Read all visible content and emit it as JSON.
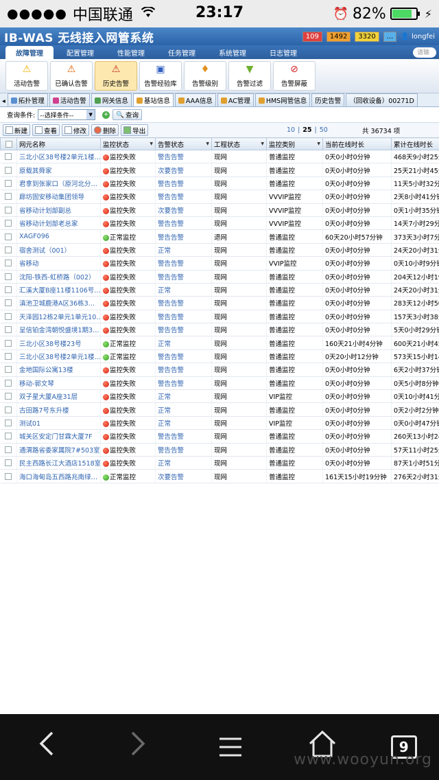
{
  "status_bar": {
    "signal": "●●●●●",
    "carrier": "中国联通",
    "wifi": "WiFi",
    "time": "23:17",
    "alarm_icon": "⏰",
    "battery": "82%",
    "charging": "⚡"
  },
  "app": {
    "title": "IB-WAS 无线接入网管系统",
    "badges": [
      "109",
      "1492",
      "3320",
      "..."
    ],
    "user": "longfei",
    "search_placeholder": "请输"
  },
  "menu": [
    "故障管理",
    "配置管理",
    "性能管理",
    "任务管理",
    "系统管理",
    "日志管理"
  ],
  "toolbar": [
    {
      "label": "活动告警",
      "icon": "⚠",
      "color": "#f0b000"
    },
    {
      "label": "已确认告警",
      "icon": "⚠",
      "color": "#e06000"
    },
    {
      "label": "历史告警",
      "icon": "⚠",
      "color": "#c03020"
    },
    {
      "label": "告警经验库",
      "icon": "▣",
      "color": "#3060c0"
    },
    {
      "label": "告警级别",
      "icon": "♦",
      "color": "#e09020"
    },
    {
      "label": "告警过滤",
      "icon": "▼",
      "color": "#70b030"
    },
    {
      "label": "告警屏蔽",
      "icon": "⊘",
      "color": "#d02020"
    }
  ],
  "tabs": [
    "拓扑管理",
    "活动告警",
    "网关信息",
    "基站信息",
    "AAA信息",
    "AC管理",
    "HMS网管信息",
    "历史告警",
    "（回收设备）00271D"
  ],
  "query": {
    "label": "查询条件:",
    "select": "--选择条件--",
    "button": "查询"
  },
  "actions": [
    "新建",
    "查看",
    "修改",
    "删除",
    "导出"
  ],
  "pager": {
    "p1": "10",
    "p2": "25",
    "p3": "50",
    "total": "共 36734 项"
  },
  "columns": [
    "网元名称",
    "监控状态",
    "告警状态",
    "工程状态",
    "监控类别",
    "当前在线时长",
    "累计在线时长"
  ],
  "rows": [
    {
      "name": "三北小区38号楼2单元1楼…",
      "mon": "监控失败",
      "ok": false,
      "alarm": "警告告警",
      "proj": "现网",
      "cat": "普通监控",
      "cur": "0天0小时0分钟",
      "tot": "468天9小时25分"
    },
    {
      "name": "原载其舜家",
      "mon": "监控失败",
      "ok": false,
      "alarm": "次要告警",
      "proj": "现网",
      "cat": "普通监控",
      "cur": "0天0小时0分钟",
      "tot": "25天21小时45分"
    },
    {
      "name": "君拿到张家口（原河北分…",
      "mon": "监控失败",
      "ok": false,
      "alarm": "警告告警",
      "proj": "现网",
      "cat": "普通监控",
      "cur": "0天0小时0分钟",
      "tot": "11天5小时32分"
    },
    {
      "name": "廊坊固安移动集团领导",
      "mon": "监控失败",
      "ok": false,
      "alarm": "警告告警",
      "proj": "现网",
      "cat": "VVVIP监控",
      "cur": "0天0小时0分钟",
      "tot": "2天8小时41分钟"
    },
    {
      "name": "省移动计划部副总",
      "mon": "监控失败",
      "ok": false,
      "alarm": "次要告警",
      "proj": "现网",
      "cat": "VVVIP监控",
      "cur": "0天0小时0分钟",
      "tot": "0天1小时35分钟"
    },
    {
      "name": "省移动计划部老总家",
      "mon": "监控失败",
      "ok": false,
      "alarm": "警告告警",
      "proj": "现网",
      "cat": "VVVIP监控",
      "cur": "0天0小时0分钟",
      "tot": "14天7小时29分"
    },
    {
      "name": "XAGF096",
      "mon": "正常监控",
      "ok": true,
      "alarm": "警告告警",
      "proj": "退网",
      "cat": "普通监控",
      "cur": "60天20小时57分钟",
      "tot": "373天3小时7分"
    },
    {
      "name": "宿舍测试（001）",
      "mon": "监控失败",
      "ok": false,
      "alarm": "正常",
      "proj": "现网",
      "cat": "普通监控",
      "cur": "0天0小时0分钟",
      "tot": "24天20小时31分"
    },
    {
      "name": "省移动",
      "mon": "监控失败",
      "ok": false,
      "alarm": "警告告警",
      "proj": "现网",
      "cat": "VVIP监控",
      "cur": "0天0小时0分钟",
      "tot": "0天10小时9分钟"
    },
    {
      "name": "沈阳-铁西-虹桥路（002）",
      "mon": "监控失败",
      "ok": false,
      "alarm": "警告告警",
      "proj": "现网",
      "cat": "普通监控",
      "cur": "0天0小时0分钟",
      "tot": "204天12小时19分"
    },
    {
      "name": "汇溪大厦B座11楼1106号…",
      "mon": "监控失败",
      "ok": false,
      "alarm": "正常",
      "proj": "现网",
      "cat": "普通监控",
      "cur": "0天0小时0分钟",
      "tot": "24天20小时31分"
    },
    {
      "name": "滇池卫城鹿港A区36栋3…",
      "mon": "监控失败",
      "ok": false,
      "alarm": "警告告警",
      "proj": "现网",
      "cat": "普通监控",
      "cur": "0天0小时0分钟",
      "tot": "283天12小时50分"
    },
    {
      "name": "天泽园12栋2单元1单元10…",
      "mon": "监控失败",
      "ok": false,
      "alarm": "警告告警",
      "proj": "现网",
      "cat": "普通监控",
      "cur": "0天0小时0分钟",
      "tot": "157天3小时38分"
    },
    {
      "name": "呈信铂金湾朝悦盛境1期3…",
      "mon": "监控失败",
      "ok": false,
      "alarm": "警告告警",
      "proj": "现网",
      "cat": "普通监控",
      "cur": "0天0小时0分钟",
      "tot": "5天0小时29分钟"
    },
    {
      "name": "三北小区38号楼23号",
      "mon": "正常监控",
      "ok": true,
      "alarm": "正常",
      "proj": "现网",
      "cat": "普通监控",
      "cur": "160天21小时4分钟",
      "tot": "600天21小时45分"
    },
    {
      "name": "三北小区38号楼2单元1楼…",
      "mon": "正常监控",
      "ok": true,
      "alarm": "警告告警",
      "proj": "现网",
      "cat": "普通监控",
      "cur": "0天20小时12分钟",
      "tot": "573天15小时14分"
    },
    {
      "name": "金地国际公寓13楼",
      "mon": "监控失败",
      "ok": false,
      "alarm": "警告告警",
      "proj": "现网",
      "cat": "普通监控",
      "cur": "0天0小时0分钟",
      "tot": "6天2小时37分钟"
    },
    {
      "name": "移动-郭文琴",
      "mon": "监控失败",
      "ok": false,
      "alarm": "警告告警",
      "proj": "现网",
      "cat": "普通监控",
      "cur": "0天0小时0分钟",
      "tot": "0天5小时8分钟"
    },
    {
      "name": "双子星大厦A座31层",
      "mon": "监控失败",
      "ok": false,
      "alarm": "正常",
      "proj": "现网",
      "cat": "VIP监控",
      "cur": "0天0小时0分钟",
      "tot": "0天10小时41分"
    },
    {
      "name": "古田路7号东升楼",
      "mon": "监控失败",
      "ok": false,
      "alarm": "正常",
      "proj": "现网",
      "cat": "普通监控",
      "cur": "0天0小时0分钟",
      "tot": "0天2小时2分钟"
    },
    {
      "name": "测试01",
      "mon": "监控失败",
      "ok": false,
      "alarm": "正常",
      "proj": "现网",
      "cat": "VIP监控",
      "cur": "0天0小时0分钟",
      "tot": "0天0小时47分钟"
    },
    {
      "name": "城关区安定门甘霖大厦7F",
      "mon": "监控失败",
      "ok": false,
      "alarm": "警告告警",
      "proj": "现网",
      "cat": "普通监控",
      "cur": "0天0小时0分钟",
      "tot": "260天13小时24分"
    },
    {
      "name": "通渭路省委家属院7#503室",
      "mon": "监控失败",
      "ok": false,
      "alarm": "警告告警",
      "proj": "现网",
      "cat": "普通监控",
      "cur": "0天0小时0分钟",
      "tot": "57天11小时25分"
    },
    {
      "name": "民主西路长江大酒店1518室",
      "mon": "监控失败",
      "ok": false,
      "alarm": "正常",
      "proj": "现网",
      "cat": "普通监控",
      "cur": "0天0小时0分钟",
      "tot": "87天1小时51分"
    },
    {
      "name": "海口海甸岛五西路兆南绿…",
      "mon": "正常监控",
      "ok": true,
      "alarm": "次要告警",
      "proj": "现网",
      "cat": "普通监控",
      "cur": "161天15小时19分钟",
      "tot": "276天2小时31分"
    }
  ],
  "bottom_nav": {
    "tabs_count": "9"
  },
  "watermark": "www.wooyun.org"
}
